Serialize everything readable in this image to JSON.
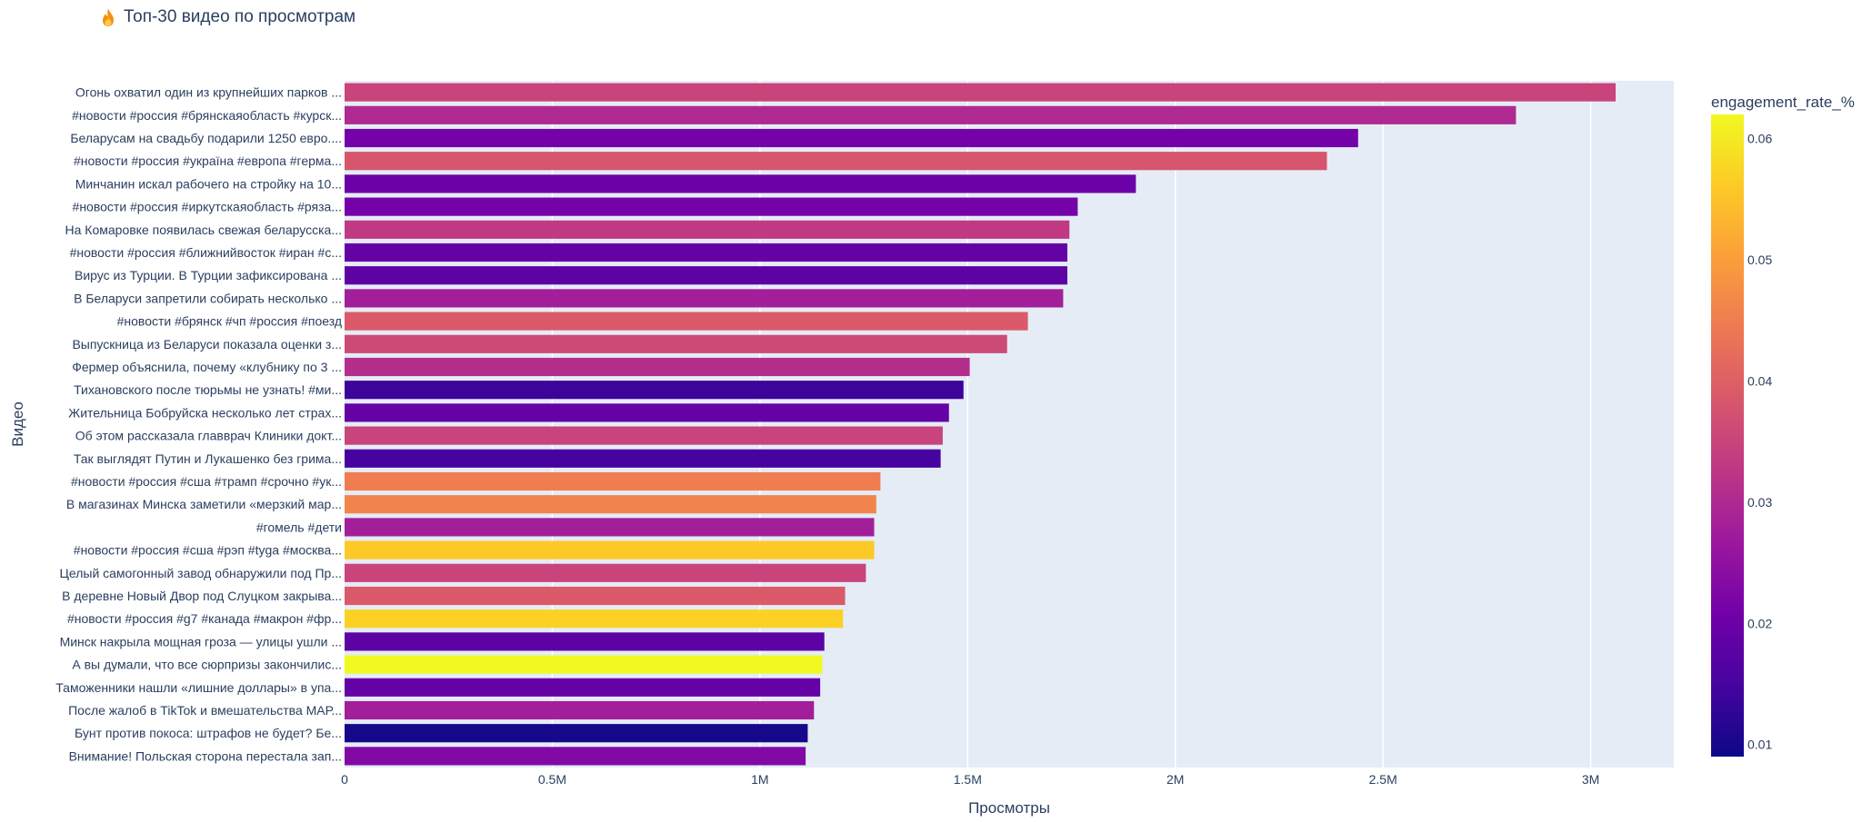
{
  "title": {
    "icon": "fire-icon",
    "text": "Топ-30 видео по просмотрам"
  },
  "chart_data": {
    "type": "bar",
    "orientation": "horizontal",
    "title": "Топ-30 видео по просмотрам",
    "xlabel": "Просмотры",
    "ylabel": "Видео",
    "xlim": [
      0,
      3200000
    ],
    "x_ticks": [
      {
        "value": 0,
        "label": "0"
      },
      {
        "value": 500000,
        "label": "0.5M"
      },
      {
        "value": 1000000,
        "label": "1M"
      },
      {
        "value": 1500000,
        "label": "1.5M"
      },
      {
        "value": 2000000,
        "label": "2M"
      },
      {
        "value": 2500000,
        "label": "2.5M"
      },
      {
        "value": 3000000,
        "label": "3M"
      }
    ],
    "grid": true,
    "colorbar": {
      "title": "engagement_rate_%",
      "range": [
        0.009,
        0.062
      ],
      "ticks": [
        {
          "value": 0.01,
          "label": "0.01"
        },
        {
          "value": 0.02,
          "label": "0.02"
        },
        {
          "value": 0.03,
          "label": "0.03"
        },
        {
          "value": 0.04,
          "label": "0.04"
        },
        {
          "value": 0.05,
          "label": "0.05"
        },
        {
          "value": 0.06,
          "label": "0.06"
        }
      ],
      "colorscale": [
        "#0d0887",
        "#46039f",
        "#7201a8",
        "#9c179e",
        "#bd3786",
        "#d8576b",
        "#ed7953",
        "#fb9f3a",
        "#fdca26",
        "#f0f921"
      ]
    },
    "bars": [
      {
        "label": "Огонь охватил один из крупнейших парков ...",
        "value": 3060000,
        "engagement": 0.035
      },
      {
        "label": "#новости #россия #брянскаяобласть #курск...",
        "value": 2820000,
        "engagement": 0.03
      },
      {
        "label": "Беларусам на свадьбу подарили 1250 евро....",
        "value": 2440000,
        "engagement": 0.021
      },
      {
        "label": "#новости #россия #україна #европа #герма...",
        "value": 2365000,
        "engagement": 0.038
      },
      {
        "label": "Минчанин искал рабочего на стройку на 10...",
        "value": 1905000,
        "engagement": 0.02
      },
      {
        "label": "#новости #россия #иркутскаяобласть #ряза...",
        "value": 1765000,
        "engagement": 0.021
      },
      {
        "label": "На Комаровке появилась свежая беларусска...",
        "value": 1745000,
        "engagement": 0.033
      },
      {
        "label": "#новости #россия #ближнийвосток #иран #с...",
        "value": 1740000,
        "engagement": 0.019
      },
      {
        "label": "Вирус из Турции. В Турции зафиксирована ...",
        "value": 1740000,
        "engagement": 0.018
      },
      {
        "label": "В Беларуси запретили собирать несколько ...",
        "value": 1730000,
        "engagement": 0.028
      },
      {
        "label": "#новости #брянск #чп #россия #поезд",
        "value": 1645000,
        "engagement": 0.039
      },
      {
        "label": "Выпускница из Беларуси показала оценки з...",
        "value": 1595000,
        "engagement": 0.036
      },
      {
        "label": "Фермер объяснила, почему «клубнику по 3 ...",
        "value": 1505000,
        "engagement": 0.031
      },
      {
        "label": "Тихановского после тюрьмы не узнать! #ми...",
        "value": 1490000,
        "engagement": 0.014
      },
      {
        "label": "Жительница Бобруйска несколько лет страх...",
        "value": 1455000,
        "engagement": 0.019
      },
      {
        "label": "Об этом рассказала главврач Клиники докт...",
        "value": 1440000,
        "engagement": 0.035
      },
      {
        "label": "Так выглядят Путин и Лукашенко без грима...",
        "value": 1435000,
        "engagement": 0.015
      },
      {
        "label": "#новости #россия #сша #трамп #срочно #ук...",
        "value": 1290000,
        "engagement": 0.045
      },
      {
        "label": "В магазинах Минска заметили «мерзкий мар...",
        "value": 1280000,
        "engagement": 0.046
      },
      {
        "label": "#гомель #дети",
        "value": 1275000,
        "engagement": 0.028
      },
      {
        "label": "#новости #россия #сша #рэп #tyga #москва...",
        "value": 1275000,
        "engagement": 0.056
      },
      {
        "label": "Целый самогонный завод обнаружили под Пр...",
        "value": 1255000,
        "engagement": 0.035
      },
      {
        "label": "В деревне Новый Двор под Слуцком закрыва...",
        "value": 1205000,
        "engagement": 0.039
      },
      {
        "label": "#новости #россия #g7 #канада #макрон #фр...",
        "value": 1200000,
        "engagement": 0.057
      },
      {
        "label": "Минск накрыла мощная гроза — улицы ушли ...",
        "value": 1155000,
        "engagement": 0.018
      },
      {
        "label": "А вы думали, что все сюрпризы закончилис...",
        "value": 1150000,
        "engagement": 0.062
      },
      {
        "label": "Таможенники нашли «лишние доллары» в упа...",
        "value": 1145000,
        "engagement": 0.019
      },
      {
        "label": "После жалоб в TikTok и вмешательства МАР...",
        "value": 1130000,
        "engagement": 0.028
      },
      {
        "label": "Бунт против покоса: штрафов не будет? Бе...",
        "value": 1115000,
        "engagement": 0.01
      },
      {
        "label": "Внимание! Польская сторона перестала зап...",
        "value": 1110000,
        "engagement": 0.023
      }
    ]
  }
}
